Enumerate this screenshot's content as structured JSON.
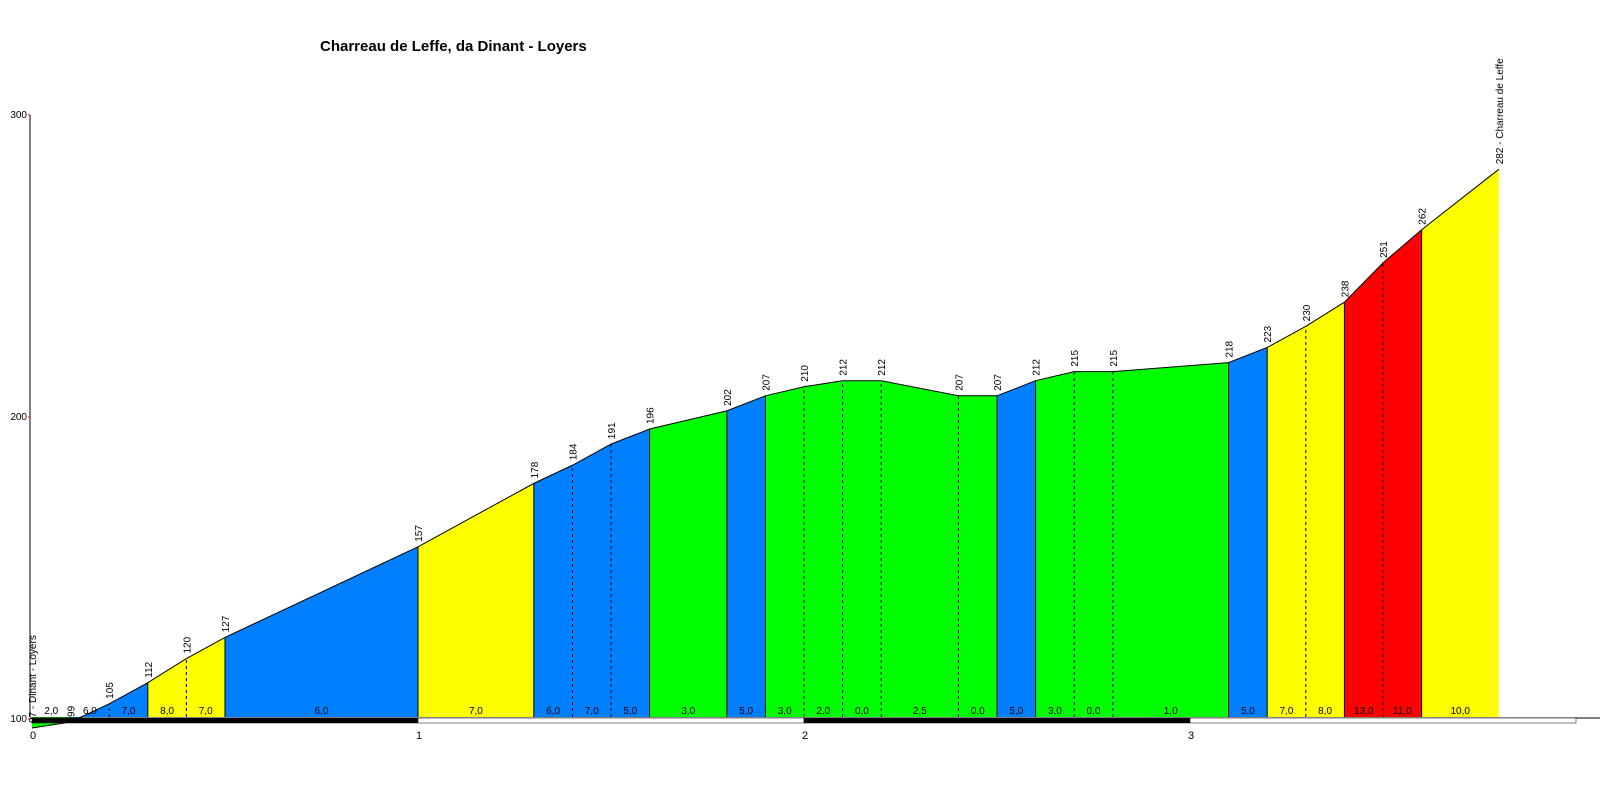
{
  "chart_data": {
    "type": "area",
    "title": "Charreau de Leffe, da Dinant - Loyers",
    "xlabel": "",
    "ylabel": "",
    "xlim": [
      0,
      4.1
    ],
    "ylim": [
      90,
      300
    ],
    "y_ticks": [
      100,
      200,
      300
    ],
    "x_ticks": [
      0,
      1,
      2,
      3
    ],
    "grid": false,
    "start_label": "97 - Dinant - Loyers",
    "end_label": "282 - Charreau de Leffe",
    "profile": [
      {
        "x": 0.0,
        "y": 97
      },
      {
        "x": 0.1,
        "y": 99
      },
      {
        "x": 0.2,
        "y": 105
      },
      {
        "x": 0.3,
        "y": 112
      },
      {
        "x": 0.4,
        "y": 120
      },
      {
        "x": 0.5,
        "y": 127
      },
      {
        "x": 1.0,
        "y": 157
      },
      {
        "x": 1.3,
        "y": 178
      },
      {
        "x": 1.4,
        "y": 184
      },
      {
        "x": 1.5,
        "y": 191
      },
      {
        "x": 1.6,
        "y": 196
      },
      {
        "x": 1.8,
        "y": 202
      },
      {
        "x": 1.9,
        "y": 207
      },
      {
        "x": 2.0,
        "y": 210
      },
      {
        "x": 2.1,
        "y": 212
      },
      {
        "x": 2.2,
        "y": 212
      },
      {
        "x": 2.4,
        "y": 207
      },
      {
        "x": 2.5,
        "y": 207
      },
      {
        "x": 2.6,
        "y": 212
      },
      {
        "x": 2.7,
        "y": 215
      },
      {
        "x": 2.8,
        "y": 215
      },
      {
        "x": 3.1,
        "y": 218
      },
      {
        "x": 3.2,
        "y": 223
      },
      {
        "x": 3.3,
        "y": 230
      },
      {
        "x": 3.4,
        "y": 238
      },
      {
        "x": 3.5,
        "y": 251
      },
      {
        "x": 3.6,
        "y": 262
      },
      {
        "x": 3.8,
        "y": 282
      }
    ],
    "segments": [
      {
        "start": 0.0,
        "end": 0.1,
        "grade": "2,0",
        "color": "#00ff00",
        "dashed_start": false
      },
      {
        "start": 0.1,
        "end": 0.2,
        "grade": "6,0",
        "color": "#0080ff",
        "dashed_start": false
      },
      {
        "start": 0.2,
        "end": 0.3,
        "grade": "7,0",
        "color": "#0080ff",
        "dashed_start": true
      },
      {
        "start": 0.3,
        "end": 0.4,
        "grade": "8,0",
        "color": "#ffff00",
        "dashed_start": false
      },
      {
        "start": 0.4,
        "end": 0.5,
        "grade": "7,0",
        "color": "#ffff00",
        "dashed_start": true
      },
      {
        "start": 0.5,
        "end": 1.0,
        "grade": "6,0",
        "color": "#0080ff",
        "dashed_start": false
      },
      {
        "start": 1.0,
        "end": 1.3,
        "grade": "7,0",
        "color": "#ffff00",
        "dashed_start": false
      },
      {
        "start": 1.3,
        "end": 1.4,
        "grade": "6,0",
        "color": "#0080ff",
        "dashed_start": false
      },
      {
        "start": 1.4,
        "end": 1.5,
        "grade": "7,0",
        "color": "#0080ff",
        "dashed_start": true
      },
      {
        "start": 1.5,
        "end": 1.6,
        "grade": "5,0",
        "color": "#0080ff",
        "dashed_start": true
      },
      {
        "start": 1.6,
        "end": 1.8,
        "grade": "3,0",
        "color": "#00ff00",
        "dashed_start": false
      },
      {
        "start": 1.8,
        "end": 1.9,
        "grade": "5,0",
        "color": "#0080ff",
        "dashed_start": false
      },
      {
        "start": 1.9,
        "end": 2.0,
        "grade": "3,0",
        "color": "#00ff00",
        "dashed_start": false
      },
      {
        "start": 2.0,
        "end": 2.1,
        "grade": "2,0",
        "color": "#00ff00",
        "dashed_start": true
      },
      {
        "start": 2.1,
        "end": 2.2,
        "grade": "0,0",
        "color": "#00ff00",
        "dashed_start": true
      },
      {
        "start": 2.2,
        "end": 2.4,
        "grade": "2,5",
        "color": "#00ff00",
        "dashed_start": true
      },
      {
        "start": 2.4,
        "end": 2.5,
        "grade": "0,0",
        "color": "#00ff00",
        "dashed_start": true
      },
      {
        "start": 2.5,
        "end": 2.6,
        "grade": "5,0",
        "color": "#0080ff",
        "dashed_start": false
      },
      {
        "start": 2.6,
        "end": 2.7,
        "grade": "3,0",
        "color": "#00ff00",
        "dashed_start": false
      },
      {
        "start": 2.7,
        "end": 2.8,
        "grade": "0,0",
        "color": "#00ff00",
        "dashed_start": true
      },
      {
        "start": 2.8,
        "end": 3.1,
        "grade": "1,0",
        "color": "#00ff00",
        "dashed_start": true
      },
      {
        "start": 3.1,
        "end": 3.2,
        "grade": "5,0",
        "color": "#0080ff",
        "dashed_start": false
      },
      {
        "start": 3.2,
        "end": 3.3,
        "grade": "7,0",
        "color": "#ffff00",
        "dashed_start": false
      },
      {
        "start": 3.3,
        "end": 3.4,
        "grade": "8,0",
        "color": "#ffff00",
        "dashed_start": true
      },
      {
        "start": 3.4,
        "end": 3.5,
        "grade": "13,0",
        "color": "#ff0000",
        "dashed_start": false
      },
      {
        "start": 3.5,
        "end": 3.6,
        "grade": "11,0",
        "color": "#ff0000",
        "dashed_start": true
      },
      {
        "start": 3.6,
        "end": 3.8,
        "grade": "10,0",
        "color": "#ffff00",
        "dashed_start": false
      }
    ]
  }
}
